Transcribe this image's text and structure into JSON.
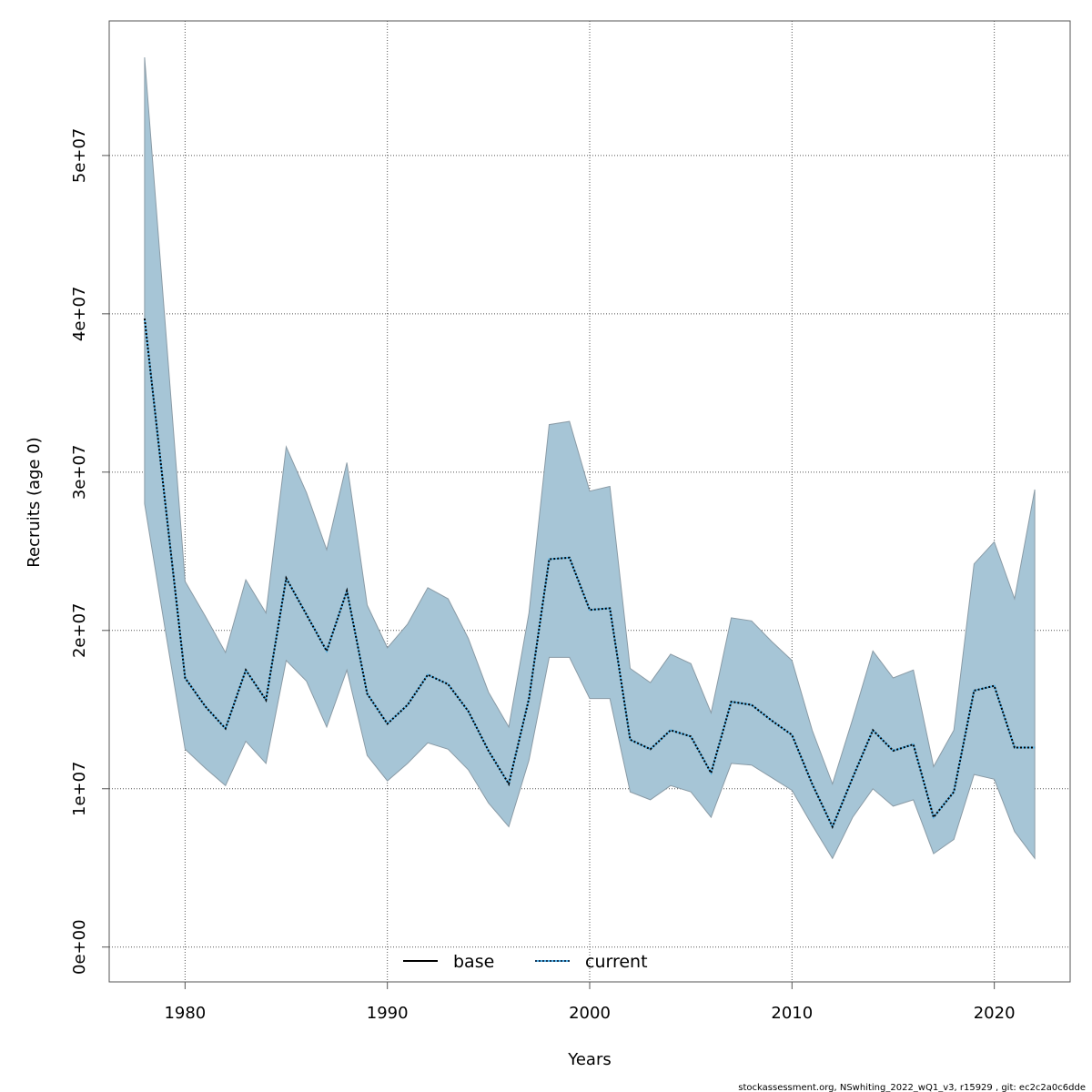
{
  "chart_data": {
    "type": "area",
    "title": "",
    "xlabel": "Years",
    "ylabel": "Recruits (age 0)",
    "xlim": [
      1976.25,
      2023.75
    ],
    "ylim": [
      -2200000,
      58500000
    ],
    "grid": true,
    "x_ticks": [
      1980,
      1990,
      2000,
      2010,
      2020
    ],
    "x_tick_labels": [
      "1980",
      "1990",
      "2000",
      "2010",
      "2020"
    ],
    "y_ticks": [
      0,
      10000000,
      20000000,
      30000000,
      40000000,
      50000000
    ],
    "y_tick_labels": [
      "0e+00",
      "1e+07",
      "2e+07",
      "3e+07",
      "4e+07",
      "5e+07"
    ],
    "legend": {
      "placement": "bottom",
      "entries": [
        {
          "label": "base",
          "style": "solid",
          "color": "#000000"
        },
        {
          "label": "current",
          "style": "dotted",
          "color": "#1f78b4"
        }
      ]
    },
    "colors": {
      "band_fill": "#a6c5d6",
      "band_stroke": "#8a9ba6",
      "line_outer": "#56b4e9",
      "line_inner": "#000000",
      "grid": "#555555"
    },
    "x": [
      1978,
      1979,
      1980,
      1981,
      1982,
      1983,
      1984,
      1985,
      1986,
      1987,
      1988,
      1989,
      1990,
      1991,
      1992,
      1993,
      1994,
      1995,
      1996,
      1997,
      1998,
      1999,
      2000,
      2001,
      2002,
      2003,
      2004,
      2005,
      2006,
      2007,
      2008,
      2009,
      2010,
      2011,
      2012,
      2013,
      2014,
      2015,
      2016,
      2017,
      2018,
      2019,
      2020,
      2021,
      2022
    ],
    "series": [
      {
        "name": "current",
        "values": [
          39.7,
          28.3,
          17.0,
          15.2,
          13.8,
          17.5,
          15.6,
          23.3,
          21.0,
          18.7,
          22.5,
          16.0,
          14.1,
          15.3,
          17.2,
          16.6,
          14.9,
          12.4,
          10.3,
          15.7,
          24.5,
          24.6,
          21.3,
          21.4,
          13.1,
          12.5,
          13.7,
          13.3,
          11.0,
          15.5,
          15.3,
          14.3,
          13.4,
          10.3,
          7.6,
          10.7,
          13.7,
          12.4,
          12.8,
          8.2,
          9.8,
          16.2,
          16.5,
          12.6,
          12.6
        ],
        "upper": [
          56.2,
          39.7,
          23.1,
          20.9,
          18.6,
          23.2,
          21.1,
          31.6,
          28.7,
          25.1,
          30.6,
          21.6,
          18.9,
          20.4,
          22.7,
          22.0,
          19.5,
          16.1,
          13.9,
          21.1,
          33.0,
          33.2,
          28.8,
          29.1,
          17.6,
          16.7,
          18.5,
          17.9,
          14.8,
          20.8,
          20.6,
          19.3,
          18.1,
          13.7,
          10.3,
          14.4,
          18.7,
          17.0,
          17.5,
          11.4,
          13.7,
          24.2,
          25.6,
          22.0,
          28.9
        ],
        "lower": [
          28.0,
          20.2,
          12.5,
          11.3,
          10.2,
          13.0,
          11.6,
          18.1,
          16.8,
          13.9,
          17.5,
          12.1,
          10.5,
          11.6,
          12.9,
          12.5,
          11.2,
          9.1,
          7.6,
          11.8,
          18.3,
          18.3,
          15.7,
          15.7,
          9.8,
          9.3,
          10.2,
          9.8,
          8.2,
          11.6,
          11.5,
          10.7,
          9.9,
          7.7,
          5.6,
          8.2,
          10.0,
          8.9,
          9.3,
          5.9,
          6.8,
          10.9,
          10.6,
          7.3,
          5.6
        ],
        "unit_multiplier": 1000000
      }
    ],
    "footer": "stockassessment.org, NSwhiting_2022_wQ1_v3, r15929 , git: ec2c2a0c6dde"
  }
}
